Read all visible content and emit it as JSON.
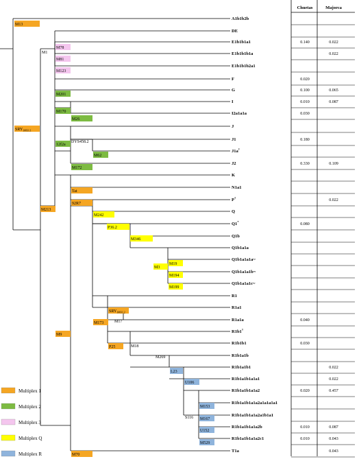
{
  "header": {
    "col1": "Chuetas",
    "col2": "Majorca"
  },
  "haplogroups": [
    {
      "name": "A1b1b2b",
      "sup": "",
      "chuetas": "",
      "majorca": ""
    },
    {
      "name": "DE",
      "sup": "",
      "chuetas": "",
      "majorca": ""
    },
    {
      "name": "E1b1b1a1",
      "sup": "",
      "chuetas": "0.140",
      "majorca": "0.022"
    },
    {
      "name": "E1b1b1b1a",
      "sup": "",
      "chuetas": "",
      "majorca": "0.022"
    },
    {
      "name": "E1b1b1b2a1",
      "sup": "",
      "chuetas": "",
      "majorca": ""
    },
    {
      "name": "F",
      "sup": "",
      "chuetas": "0.020",
      "majorca": ""
    },
    {
      "name": "G",
      "sup": "",
      "chuetas": "0.100",
      "majorca": "0.065"
    },
    {
      "name": "I",
      "sup": "",
      "chuetas": "0.010",
      "majorca": "0.087"
    },
    {
      "name": "I2a1a1a",
      "sup": "",
      "chuetas": "0.030",
      "majorca": ""
    },
    {
      "name": "J",
      "sup": "",
      "chuetas": "",
      "majorca": ""
    },
    {
      "name": "J1",
      "sup": "",
      "chuetas": "0.180",
      "majorca": ""
    },
    {
      "name": "J1a",
      "sup": "†",
      "chuetas": "",
      "majorca": ""
    },
    {
      "name": "J2",
      "sup": "",
      "chuetas": "0.330",
      "majorca": "0.109"
    },
    {
      "name": "K",
      "sup": "",
      "chuetas": "",
      "majorca": ""
    },
    {
      "name": "N1a1",
      "sup": "",
      "chuetas": "",
      "majorca": ""
    },
    {
      "name": "P",
      "sup": "†",
      "chuetas": "",
      "majorca": "0.022"
    },
    {
      "name": "Q",
      "sup": "",
      "chuetas": "",
      "majorca": ""
    },
    {
      "name": "Q1",
      "sup": "*",
      "chuetas": "0.080",
      "majorca": ""
    },
    {
      "name": "Q1b",
      "sup": "",
      "chuetas": "",
      "majorca": ""
    },
    {
      "name": "Q1b1a1a",
      "sup": "",
      "chuetas": "",
      "majorca": ""
    },
    {
      "name": "Q1b1a1a1a~",
      "sup": "",
      "chuetas": "",
      "majorca": ""
    },
    {
      "name": "Q1b1a1a1b~",
      "sup": "",
      "chuetas": "",
      "majorca": ""
    },
    {
      "name": "Q1b1a1a1c~",
      "sup": "",
      "chuetas": "",
      "majorca": ""
    },
    {
      "name": "R1",
      "sup": "",
      "chuetas": "",
      "majorca": ""
    },
    {
      "name": "R1a1",
      "sup": "",
      "chuetas": "",
      "majorca": ""
    },
    {
      "name": "R1a1a",
      "sup": "",
      "chuetas": "0.040",
      "majorca": ""
    },
    {
      "name": "R1b1",
      "sup": "†",
      "chuetas": "",
      "majorca": ""
    },
    {
      "name": "R1b1b1",
      "sup": "",
      "chuetas": "0.030",
      "majorca": ""
    },
    {
      "name": "R1b1a1b",
      "sup": "",
      "chuetas": "",
      "majorca": ""
    },
    {
      "name": "R1b1a1b1",
      "sup": "",
      "chuetas": "",
      "majorca": "0.022"
    },
    {
      "name": "R1b1a1b1a1a1",
      "sup": "",
      "chuetas": "",
      "majorca": "0.022"
    },
    {
      "name": "R1b1a1b1a1a2",
      "sup": "",
      "chuetas": "0.020",
      "majorca": "0.457"
    },
    {
      "name": "R1b1a1b1a1a2a1a1a1a1",
      "sup": "",
      "chuetas": "",
      "majorca": ""
    },
    {
      "name": "R1b1a1b1a1a2a1b1a1",
      "sup": "",
      "chuetas": "",
      "majorca": ""
    },
    {
      "name": "R1b1a1b1a1a2b",
      "sup": "",
      "chuetas": "0.010",
      "majorca": "0.087"
    },
    {
      "name": "R1b1a1b1a1a2c1",
      "sup": "",
      "chuetas": "0.010",
      "majorca": "0.043"
    },
    {
      "name": "T1a",
      "sup": "",
      "chuetas": "",
      "majorca": "0.043"
    }
  ],
  "markers": [
    {
      "id": "M13",
      "label": "M13",
      "sub": "",
      "set": "m1"
    },
    {
      "id": "M78",
      "label": "M78",
      "sub": "",
      "set": "m3"
    },
    {
      "id": "M81",
      "label": "M81",
      "sub": "",
      "set": "m3"
    },
    {
      "id": "M123",
      "label": "M123",
      "sub": "",
      "set": "m3"
    },
    {
      "id": "M201",
      "label": "M201",
      "sub": "",
      "set": "m2"
    },
    {
      "id": "M170",
      "label": "M170",
      "sub": "",
      "set": "m2"
    },
    {
      "id": "M26",
      "label": "M26",
      "sub": "",
      "set": "m2"
    },
    {
      "id": "SRY1",
      "label": "SRY",
      "sub": "10831.1",
      "set": "m1"
    },
    {
      "id": "12f2a",
      "label": "12f2a",
      "sub": "",
      "set": "m2"
    },
    {
      "id": "M62",
      "label": "M62",
      "sub": "",
      "set": "m2"
    },
    {
      "id": "M172",
      "label": "M172",
      "sub": "",
      "set": "m2"
    },
    {
      "id": "Tat",
      "label": "Tat",
      "sub": "",
      "set": "m1"
    },
    {
      "id": "92R7",
      "label": "92R7",
      "sub": "",
      "set": "m1"
    },
    {
      "id": "M213",
      "label": "M213",
      "sub": "",
      "set": "m1"
    },
    {
      "id": "M242",
      "label": "M242",
      "sub": "",
      "set": "mq"
    },
    {
      "id": "P36.2",
      "label": "P36.2",
      "sub": "",
      "set": "mq"
    },
    {
      "id": "M346",
      "label": "M346",
      "sub": "",
      "set": "mq"
    },
    {
      "id": "M3",
      "label": "M3",
      "sub": "",
      "set": "mq"
    },
    {
      "id": "M19",
      "label": "M19",
      "sub": "",
      "set": "mq"
    },
    {
      "id": "M194",
      "label": "M194",
      "sub": "",
      "set": "mq"
    },
    {
      "id": "M199",
      "label": "M199",
      "sub": "",
      "set": "mq"
    },
    {
      "id": "SRY2",
      "label": "SRY",
      "sub": "10831.2",
      "set": "m1"
    },
    {
      "id": "M173",
      "label": "M173",
      "sub": "",
      "set": "m1"
    },
    {
      "id": "M9",
      "label": "M9",
      "sub": "",
      "set": "m1"
    },
    {
      "id": "P25",
      "label": "P25",
      "sub": "",
      "set": "m1"
    },
    {
      "id": "L23",
      "label": "L23",
      "sub": "",
      "set": "mr"
    },
    {
      "id": "U106",
      "label": "U106",
      "sub": "",
      "set": "mr"
    },
    {
      "id": "M153",
      "label": "M153",
      "sub": "",
      "set": "mr"
    },
    {
      "id": "M167",
      "label": "M167",
      "sub": "",
      "set": "mr"
    },
    {
      "id": "U152",
      "label": "U152",
      "sub": "",
      "set": "mr"
    },
    {
      "id": "M529",
      "label": "M529",
      "sub": "",
      "set": "mr"
    },
    {
      "id": "M70",
      "label": "M70",
      "sub": "",
      "set": "m1"
    }
  ],
  "plain_markers": [
    "M1",
    "DYS458.2",
    "M17",
    "M18",
    "M269",
    "S116"
  ],
  "legend": [
    {
      "set": "m1",
      "label": "Multiplex 1",
      "color": "#f5a623"
    },
    {
      "set": "m2",
      "label": "Multiplex 2",
      "color": "#7dbb42"
    },
    {
      "set": "m3",
      "label": "Multiplex 3",
      "color": "#f4c6ee"
    },
    {
      "set": "mq",
      "label": "Multiplex Q",
      "color": "#ffff00"
    },
    {
      "set": "mr",
      "label": "Multiplex R",
      "color": "#8fb4dc"
    }
  ]
}
